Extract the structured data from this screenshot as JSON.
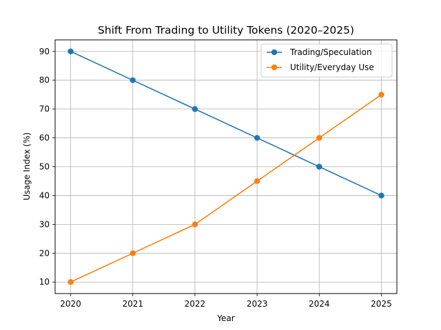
{
  "chart_data": {
    "type": "line",
    "title": "Shift From Trading to Utility Tokens (2020–2025)",
    "xlabel": "Year",
    "ylabel": "Usage Index (%)",
    "x": [
      "2020",
      "2021",
      "2022",
      "2023",
      "2024",
      "2025"
    ],
    "xlim": [
      2019.75,
      2025.25
    ],
    "yticks": [
      10,
      20,
      30,
      40,
      50,
      60,
      70,
      80,
      90
    ],
    "ylim": [
      6,
      94
    ],
    "grid": true,
    "legend_position": "top-right",
    "series": [
      {
        "name": "Trading/Speculation",
        "color": "#1f77b4",
        "marker": "circle",
        "values": [
          90,
          80,
          70,
          60,
          50,
          40
        ]
      },
      {
        "name": "Utility/Everyday Use",
        "color": "#ff7f0e",
        "marker": "circle",
        "values": [
          10,
          20,
          30,
          45,
          60,
          75
        ]
      }
    ]
  }
}
